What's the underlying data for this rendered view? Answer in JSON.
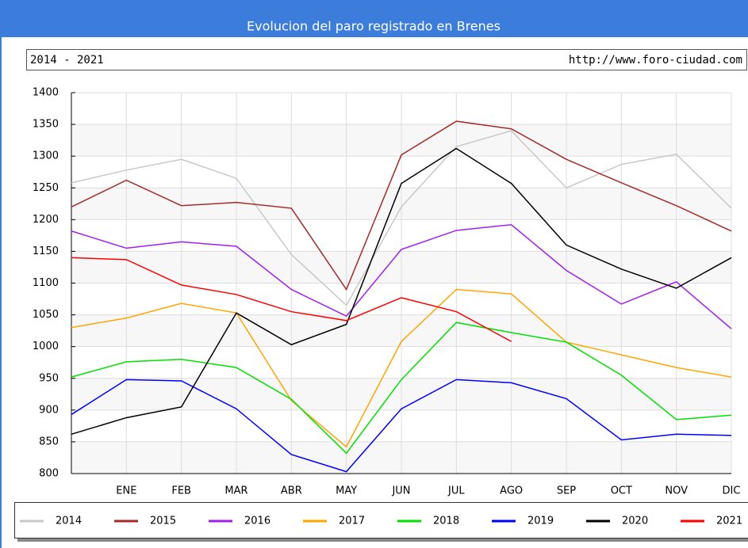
{
  "chart_data": {
    "type": "line",
    "title": "Evolucion del paro registrado en Brenes",
    "subtitle": "2014 - 2021",
    "source": "http://www.foro-ciudad.com",
    "categories": [
      null,
      "ENE",
      "FEB",
      "MAR",
      "ABR",
      "MAY",
      "JUN",
      "JUL",
      "AGO",
      "SEP",
      "OCT",
      "NOV",
      "DIC"
    ],
    "ylim": [
      800,
      1400
    ],
    "yticks": [
      800,
      850,
      900,
      950,
      1000,
      1050,
      1100,
      1150,
      1200,
      1250,
      1300,
      1350,
      1400
    ],
    "grid": true,
    "legend": "bottom",
    "series": [
      {
        "name": "2014",
        "color": "#c8c8c8",
        "values": [
          1258,
          1278,
          1295,
          1265,
          1145,
          1065,
          1220,
          1315,
          1340,
          1250,
          1287,
          1303,
          1218
        ]
      },
      {
        "name": "2015",
        "color": "#a52a2a",
        "values": [
          1220,
          1262,
          1222,
          1227,
          1218,
          1090,
          1302,
          1355,
          1343,
          1295,
          1258,
          1222,
          1182
        ]
      },
      {
        "name": "2016",
        "color": "#a020f0",
        "values": [
          1182,
          1155,
          1165,
          1158,
          1090,
          1048,
          1153,
          1183,
          1192,
          1120,
          1067,
          1102,
          1028
        ]
      },
      {
        "name": "2017",
        "color": "#ffa500",
        "values": [
          1030,
          1045,
          1068,
          1053,
          915,
          842,
          1008,
          1090,
          1083,
          1007,
          987,
          967,
          952
        ]
      },
      {
        "name": "2018",
        "color": "#00e000",
        "values": [
          952,
          976,
          980,
          967,
          917,
          832,
          948,
          1038,
          1022,
          1007,
          955,
          885,
          892
        ]
      },
      {
        "name": "2019",
        "color": "#0000ff",
        "values": [
          893,
          948,
          946,
          902,
          830,
          803,
          902,
          948,
          943,
          918,
          853,
          862,
          860
        ]
      },
      {
        "name": "2020",
        "color": "#000000",
        "values": [
          862,
          888,
          905,
          1053,
          1003,
          1035,
          1257,
          1312,
          1257,
          1160,
          1122,
          1092,
          1140
        ]
      },
      {
        "name": "2021",
        "color": "#ff0000",
        "values": [
          1140,
          1137,
          1097,
          1082,
          1055,
          1041,
          1077,
          1055,
          1008,
          null,
          null,
          null,
          null
        ]
      }
    ]
  }
}
